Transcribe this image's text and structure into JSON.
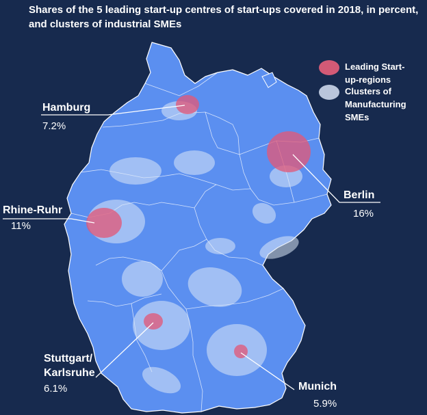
{
  "title": "Shares of the 5 leading start-up centres of start-ups covered in 2018, in percent, and clusters of industrial SMEs",
  "colors": {
    "background": "#172a4e",
    "land": "#5b8ff0",
    "start_up_region": "#e05a7a",
    "sme_cluster": "#dbe7f7",
    "border": "#ffffff"
  },
  "legend": {
    "leading": "Leading Start-up-regions",
    "clusters": "Clusters of Manufacturing SMEs"
  },
  "cities": {
    "hamburg": {
      "name": "Hamburg",
      "value": "7.2%"
    },
    "rhine_ruhr": {
      "name": "Rhine-Ruhr",
      "value": "11%"
    },
    "berlin": {
      "name": "Berlin",
      "value": "16%"
    },
    "stuttgart": {
      "name": "Stuttgart/\nKarlsruhe",
      "value": "6.1%"
    },
    "munich": {
      "name": "Munich",
      "value": "5.9%"
    }
  }
}
